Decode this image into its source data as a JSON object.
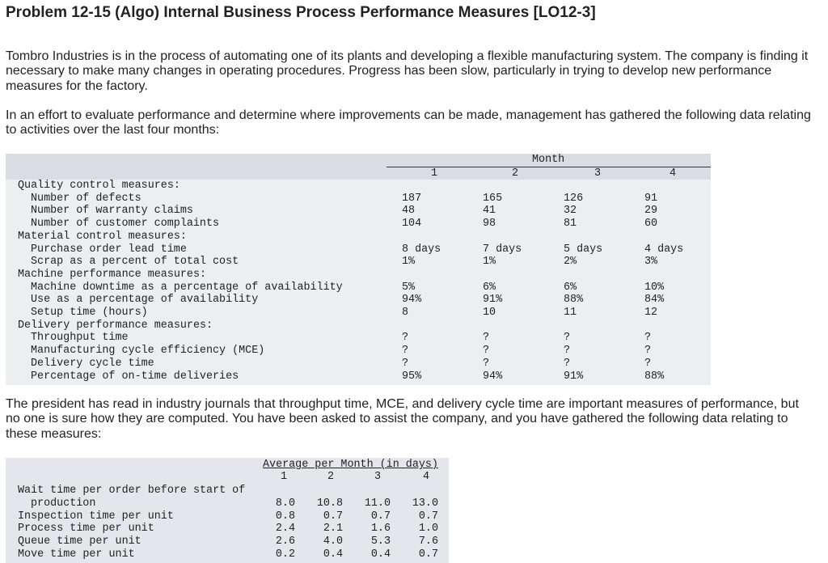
{
  "title": "Problem 12-15 (Algo) Internal Business Process Performance Measures [LO12-3]",
  "paragraphs": [
    "Tombro Industries is in the process of automating one of its plants and developing a flexible manufacturing system. The company is finding it necessary to make many changes in operating procedures. Progress has been slow, particularly in trying to develop new performance measures for the factory.",
    "In an effort to evaluate performance and determine where improvements can be made, management has gathered the following data relating to activities over the last four months:",
    "The president has read in industry journals that throughput time, MCE, and delivery cycle time are important measures of performance, but no one is sure how they are computed. You have been asked to assist the company, and you have gathered the following data relating to these measures:"
  ],
  "table1": {
    "header": "Month",
    "columns": [
      "1",
      "2",
      "3",
      "4"
    ],
    "sections": [
      {
        "label": "Quality control measures:",
        "rows": [
          {
            "label": "Number of defects",
            "values": [
              "187",
              "165",
              "126",
              "91"
            ]
          },
          {
            "label": "Number of warranty claims",
            "values": [
              "48",
              "41",
              "32",
              "29"
            ]
          },
          {
            "label": "Number of customer complaints",
            "values": [
              "104",
              "98",
              "81",
              "60"
            ]
          }
        ]
      },
      {
        "label": "Material control measures:",
        "rows": [
          {
            "label": "Purchase order lead time",
            "values": [
              "8 days",
              "7 days",
              "5 days",
              "4 days"
            ]
          },
          {
            "label": "Scrap as a percent of total cost",
            "values": [
              "1%",
              "1%",
              "2%",
              "3%"
            ]
          }
        ]
      },
      {
        "label": "Machine performance measures:",
        "rows": [
          {
            "label": "Machine downtime as a percentage of availability",
            "values": [
              "5%",
              "6%",
              "6%",
              "10%"
            ]
          },
          {
            "label": "Use as a percentage of availability",
            "values": [
              "94%",
              "91%",
              "88%",
              "84%"
            ]
          },
          {
            "label": "Setup time (hours)",
            "values": [
              "8",
              "10",
              "11",
              "12"
            ]
          }
        ]
      },
      {
        "label": "Delivery performance measures:",
        "rows": [
          {
            "label": "Throughput time",
            "values": [
              "?",
              "?",
              "?",
              "?"
            ]
          },
          {
            "label": "Manufacturing cycle efficiency (MCE)",
            "values": [
              "?",
              "?",
              "?",
              "?"
            ]
          },
          {
            "label": "Delivery cycle time",
            "values": [
              "?",
              "?",
              "?",
              "?"
            ]
          },
          {
            "label": "Percentage of on-time deliveries",
            "values": [
              "95%",
              "94%",
              "91%",
              "88%"
            ]
          }
        ]
      }
    ]
  },
  "table2": {
    "header": "Average per Month (in days)",
    "columns": [
      "1",
      "2",
      "3",
      "4"
    ],
    "rows": [
      {
        "label": "Wait time per order before start of production",
        "values": [
          "8.0",
          "10.8",
          "11.0",
          "13.0"
        ]
      },
      {
        "label": "Inspection time per unit",
        "values": [
          "0.8",
          "0.7",
          "0.7",
          "0.7"
        ]
      },
      {
        "label": "Process time per unit",
        "values": [
          "2.4",
          "2.1",
          "1.6",
          "1.0"
        ]
      },
      {
        "label": "Queue time per unit",
        "values": [
          "2.6",
          "4.0",
          "5.3",
          "7.6"
        ]
      },
      {
        "label": "Move time per unit",
        "values": [
          "0.2",
          "0.4",
          "0.4",
          "0.7"
        ]
      }
    ]
  }
}
